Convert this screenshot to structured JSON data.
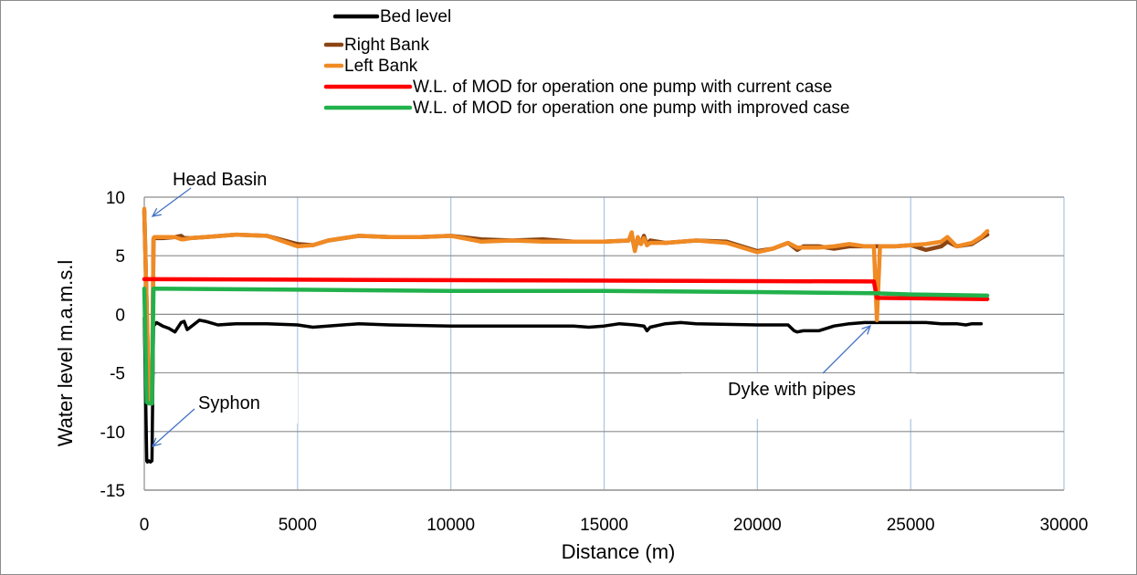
{
  "chart_data": {
    "type": "line",
    "xlabel": "Distance (m)",
    "ylabel": "Water level m.a.m.s.l",
    "xlim": [
      0,
      30000
    ],
    "ylim": [
      -15,
      10
    ],
    "x_ticks": [
      "0",
      "5000",
      "10000",
      "15000",
      "20000",
      "25000",
      "30000"
    ],
    "y_ticks": [
      "10",
      "5",
      "0",
      "-5",
      "-10",
      "-15"
    ],
    "grid": true,
    "legend_position": "top",
    "series": [
      {
        "name": "Bed level",
        "color": "#000000",
        "x": [
          0,
          80,
          100,
          150,
          200,
          250,
          300,
          400,
          600,
          800,
          1000,
          1200,
          1300,
          1400,
          1600,
          1800,
          2000,
          2400,
          3000,
          4000,
          5000,
          5500,
          7000,
          8000,
          10000,
          12000,
          14000,
          14500,
          15000,
          15500,
          16000,
          16300,
          16400,
          16500,
          17000,
          17500,
          18000,
          20000,
          21000,
          21200,
          21300,
          21500,
          22000,
          22500,
          23000,
          23500,
          24000,
          25000,
          25500,
          26000,
          26500,
          26800,
          27000,
          27300
        ],
        "y": [
          -0.3,
          -12.5,
          -12.6,
          -12.5,
          -12.6,
          -12.5,
          -1.0,
          -0.7,
          -1.0,
          -1.2,
          -1.5,
          -0.7,
          -0.6,
          -1.3,
          -0.9,
          -0.5,
          -0.6,
          -0.9,
          -0.8,
          -0.8,
          -0.9,
          -1.1,
          -0.8,
          -0.9,
          -1.0,
          -1.0,
          -1.0,
          -1.1,
          -1.0,
          -0.8,
          -0.9,
          -1.0,
          -1.4,
          -1.1,
          -0.8,
          -0.7,
          -0.8,
          -0.9,
          -0.9,
          -1.4,
          -1.5,
          -1.4,
          -1.4,
          -1.0,
          -0.8,
          -0.7,
          -0.7,
          -0.7,
          -0.7,
          -0.8,
          -0.8,
          -0.9,
          -0.8,
          -0.8
        ]
      },
      {
        "name": "Right Bank",
        "color": "#8B4513",
        "x": [
          0,
          80,
          150,
          250,
          300,
          330,
          600,
          1000,
          1200,
          1300,
          1500,
          2000,
          3000,
          4000,
          5000,
          5500,
          6000,
          7000,
          8000,
          9000,
          10000,
          11000,
          12000,
          13000,
          14000,
          15000,
          15800,
          15900,
          16000,
          16100,
          16200,
          16300,
          16400,
          16500,
          17000,
          18000,
          19000,
          20000,
          20500,
          21000,
          21300,
          21500,
          22000,
          22500,
          23000,
          23500,
          24000,
          24500,
          25000,
          25500,
          26000,
          26200,
          26500,
          27000,
          27300,
          27500
        ],
        "y": [
          8.8,
          0.5,
          -7.5,
          -7.6,
          6.4,
          6.5,
          6.5,
          6.6,
          6.7,
          6.5,
          6.5,
          6.6,
          6.8,
          6.7,
          6.0,
          5.9,
          6.3,
          6.7,
          6.6,
          6.6,
          6.7,
          6.4,
          6.3,
          6.4,
          6.2,
          6.2,
          6.3,
          6.8,
          5.5,
          6.4,
          6.0,
          6.7,
          5.9,
          6.3,
          6.1,
          6.3,
          6.2,
          5.4,
          5.6,
          6.1,
          5.5,
          5.8,
          5.8,
          5.6,
          5.8,
          5.8,
          5.8,
          5.8,
          5.9,
          5.5,
          5.8,
          6.2,
          5.8,
          6.0,
          6.5,
          6.8
        ]
      },
      {
        "name": "Left Bank",
        "color": "#F08A24",
        "x": [
          0,
          80,
          150,
          250,
          300,
          330,
          600,
          1000,
          1200,
          1300,
          1500,
          2000,
          3000,
          4000,
          5000,
          5500,
          6000,
          7000,
          8000,
          9000,
          10000,
          11000,
          12000,
          13000,
          14000,
          15000,
          15800,
          15900,
          16000,
          16100,
          16200,
          16300,
          16400,
          16500,
          17000,
          18000,
          19000,
          20000,
          20500,
          21000,
          21300,
          21500,
          22000,
          22500,
          23000,
          23500,
          23700,
          23800,
          23900,
          24000,
          24500,
          25000,
          25500,
          26000,
          26200,
          26500,
          27000,
          27300,
          27500
        ],
        "y": [
          9.0,
          0.4,
          -7.5,
          -7.6,
          6.5,
          6.6,
          6.6,
          6.6,
          6.4,
          6.4,
          6.5,
          6.6,
          6.8,
          6.7,
          5.8,
          5.9,
          6.3,
          6.7,
          6.6,
          6.6,
          6.7,
          6.2,
          6.3,
          6.2,
          6.2,
          6.2,
          6.3,
          7.0,
          5.4,
          6.6,
          6.0,
          6.5,
          5.9,
          6.1,
          6.1,
          6.3,
          6.1,
          5.3,
          5.6,
          6.1,
          5.7,
          5.7,
          5.7,
          5.8,
          6.0,
          5.8,
          5.8,
          5.8,
          -0.5,
          5.8,
          5.8,
          5.9,
          6.0,
          6.2,
          6.6,
          5.8,
          6.1,
          6.6,
          7.1
        ]
      },
      {
        "name": "W.L. of MOD for  operation one pump with current case",
        "color": "#FF0000",
        "x": [
          0,
          300,
          23800,
          23900,
          27500
        ],
        "y": [
          3.0,
          3.0,
          2.8,
          1.4,
          1.3
        ]
      },
      {
        "name": "W.L. of MOD for operation one pump with improved case",
        "color": "#22B14C",
        "x": [
          0,
          80,
          150,
          250,
          300,
          330,
          5000,
          10000,
          15000,
          20000,
          23800,
          25000,
          27500
        ],
        "y": [
          2.2,
          -7.5,
          -7.6,
          -7.6,
          2.2,
          2.2,
          2.1,
          2.0,
          2.0,
          1.9,
          1.8,
          1.7,
          1.6
        ]
      }
    ],
    "annotations": [
      {
        "text": "Head Basin",
        "x": 30,
        "y": 8.4
      },
      {
        "text": "Syphon",
        "x": 30,
        "y": -11.5
      },
      {
        "text": "Dyke with pipes",
        "x": 23900,
        "y": -0.8
      }
    ]
  }
}
